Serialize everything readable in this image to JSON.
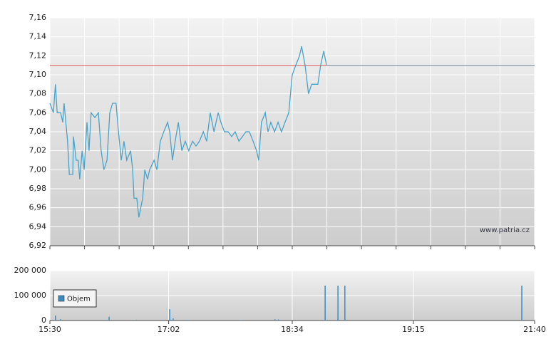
{
  "chart_data": [
    {
      "type": "line",
      "color": "#4aa3c8",
      "x": [
        0,
        0.1,
        0.16,
        0.21,
        0.31,
        0.37,
        0.41,
        0.51,
        0.56,
        0.66,
        0.68,
        0.76,
        0.82,
        0.86,
        0.93,
        0.99,
        1.07,
        1.13,
        1.19,
        1.3,
        1.4,
        1.48,
        1.56,
        1.65,
        1.73,
        1.81,
        1.91,
        1.98,
        2.06,
        2.14,
        2.22,
        2.33,
        2.39,
        2.43,
        2.51,
        2.57,
        2.68,
        2.74,
        2.82,
        2.88,
        3.01,
        3.09,
        3.19,
        3.29,
        3.4,
        3.46,
        3.54,
        3.62,
        3.71,
        3.81,
        3.91,
        4.01,
        4.12,
        4.22,
        4.32,
        4.43,
        4.53,
        4.63,
        4.74,
        4.86,
        4.94,
        5.04,
        5.15,
        5.25,
        5.35,
        5.46,
        5.56,
        5.66,
        5.76,
        5.87,
        5.97,
        6.03,
        6.11,
        6.22,
        6.3,
        6.38,
        6.49,
        6.59,
        6.69,
        6.79,
        6.9,
        7.0,
        7.1,
        7.21,
        7.27,
        7.37,
        7.47,
        7.56,
        7.66,
        7.74,
        7.82,
        7.91,
        7.99
      ],
      "values": [
        7.07,
        7.06,
        7.09,
        7.06,
        7.06,
        7.05,
        7.07,
        7.03,
        6.995,
        6.995,
        7.035,
        7.01,
        7.01,
        6.99,
        7.02,
        7.0,
        7.05,
        7.02,
        7.06,
        7.055,
        7.06,
        7.02,
        7.0,
        7.01,
        7.06,
        7.07,
        7.07,
        7.04,
        7.01,
        7.03,
        7.01,
        7.02,
        7.0,
        6.97,
        6.97,
        6.95,
        6.97,
        7.0,
        6.99,
        7.0,
        7.01,
        7.0,
        7.03,
        7.04,
        7.05,
        7.04,
        7.01,
        7.03,
        7.05,
        7.02,
        7.03,
        7.02,
        7.03,
        7.025,
        7.03,
        7.04,
        7.03,
        7.06,
        7.04,
        7.06,
        7.05,
        7.04,
        7.04,
        7.035,
        7.04,
        7.03,
        7.035,
        7.04,
        7.04,
        7.03,
        7.02,
        7.01,
        7.05,
        7.06,
        7.04,
        7.05,
        7.04,
        7.05,
        7.04,
        7.05,
        7.06,
        7.1,
        7.11,
        7.12,
        7.13,
        7.11,
        7.08,
        7.09,
        7.09,
        7.09,
        7.11,
        7.125,
        7.11
      ],
      "reference_line": {
        "value": 7.11,
        "color": "#e06666",
        "after_color": "#7f8fa0"
      },
      "xlim": [
        0,
        14
      ],
      "xgrid": [
        0,
        1,
        2,
        3,
        4,
        5,
        6,
        7,
        8,
        9,
        10,
        11,
        12,
        13,
        14
      ],
      "ylim": [
        6.92,
        7.16
      ],
      "yticks": [
        {
          "value": 6.92,
          "label": "6,92"
        },
        {
          "value": 6.94,
          "label": "6,94"
        },
        {
          "value": 6.96,
          "label": "6,96"
        },
        {
          "value": 6.98,
          "label": "6,98"
        },
        {
          "value": 7.0,
          "label": "7,00"
        },
        {
          "value": 7.02,
          "label": "7,02"
        },
        {
          "value": 7.04,
          "label": "7,04"
        },
        {
          "value": 7.06,
          "label": "7,06"
        },
        {
          "value": 7.08,
          "label": "7,08"
        },
        {
          "value": 7.1,
          "label": "7,10"
        },
        {
          "value": 7.12,
          "label": "7,12"
        },
        {
          "value": 7.14,
          "label": "7,14"
        },
        {
          "value": 7.16,
          "label": "7,16"
        }
      ],
      "watermark": "www.patria.cz"
    },
    {
      "type": "bar",
      "series": [
        {
          "name": "Objem",
          "color": "#3d8bbd",
          "x": [
            0.16,
            0.31,
            1.71,
            2.5,
            3.46,
            3.56,
            4.0,
            5.5,
            6.5,
            6.6,
            7.95,
            8.32,
            8.52,
            13.63
          ],
          "values": [
            20000,
            5000,
            15000,
            3000,
            45000,
            8000,
            2000,
            2000,
            5000,
            4000,
            140000,
            140000,
            140000,
            140000
          ]
        }
      ],
      "xlim": [
        0,
        14
      ],
      "xticks": [
        {
          "value": 0,
          "label": "15:30"
        },
        {
          "value": 3.43,
          "label": "17:02"
        },
        {
          "value": 7.0,
          "label": "18:34"
        },
        {
          "value": 10.5,
          "label": "19:15"
        },
        {
          "value": 14,
          "label": "21:40"
        }
      ],
      "ylim": [
        0,
        200000
      ],
      "yticks": [
        {
          "value": 0,
          "label": "0"
        },
        {
          "value": 100000,
          "label": "100 000"
        },
        {
          "value": 200000,
          "label": "200 000"
        }
      ]
    }
  ]
}
